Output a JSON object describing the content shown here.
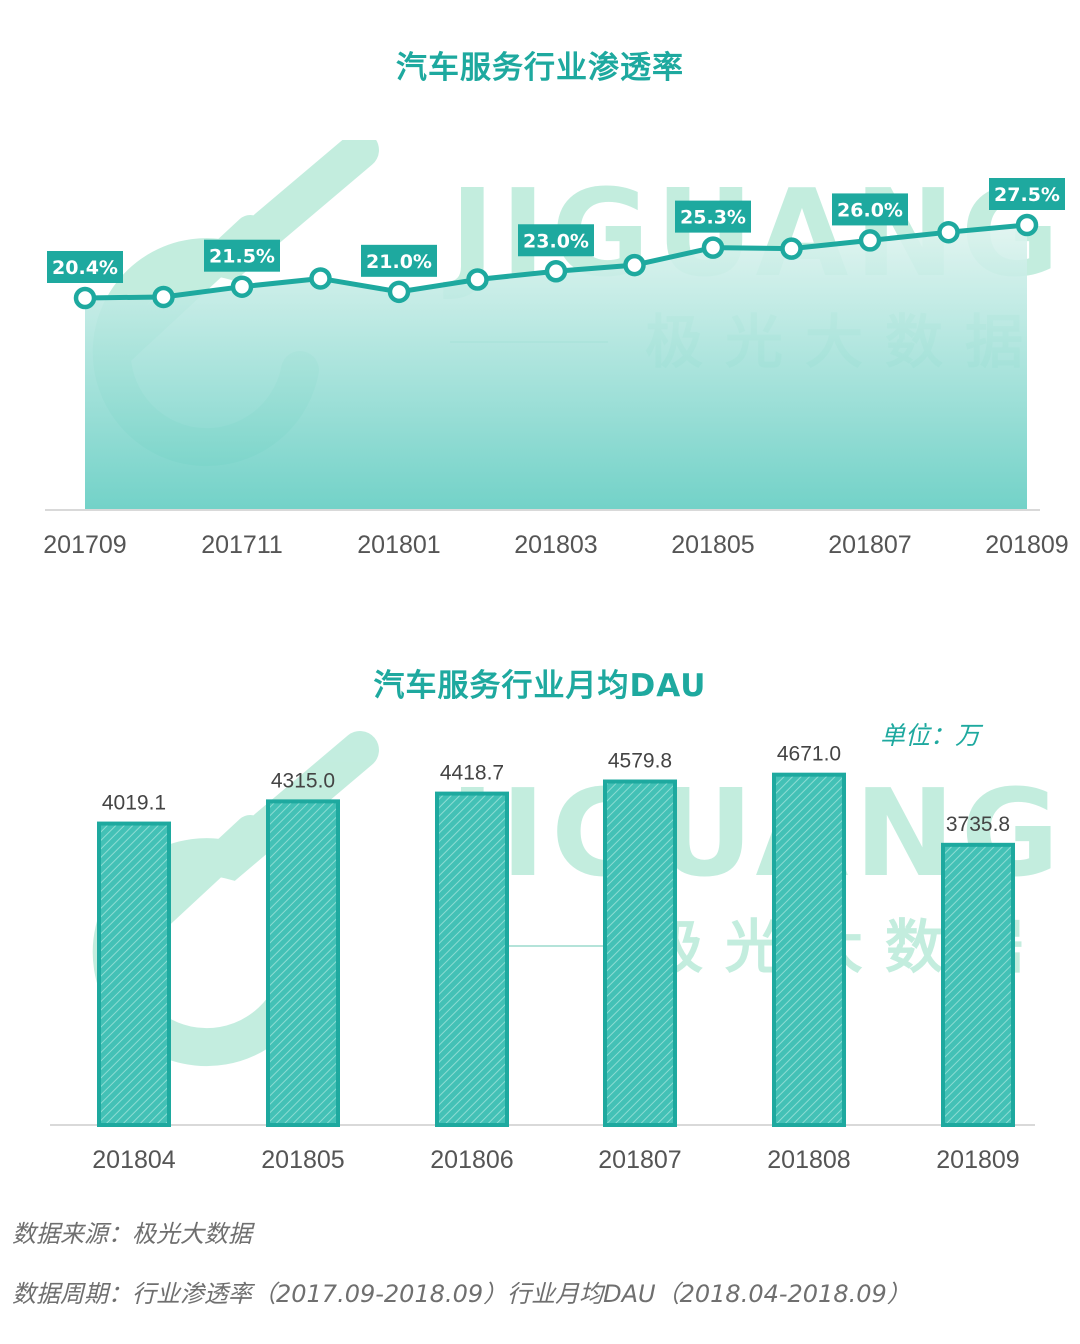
{
  "watermark": {
    "brand": "JIGUANG",
    "cn": "极光大数据"
  },
  "chart_data": [
    {
      "type": "area",
      "title": "汽车服务行业渗透率",
      "x": [
        "201709",
        "201710",
        "201711",
        "201712",
        "201801",
        "201802",
        "201803",
        "201804",
        "201805",
        "201806",
        "201807",
        "201808",
        "201809"
      ],
      "x_tick_labels": [
        "201709",
        "201711",
        "201801",
        "201803",
        "201805",
        "201807",
        "201809"
      ],
      "values": [
        20.4,
        20.5,
        21.5,
        22.3,
        21.0,
        22.2,
        23.0,
        23.6,
        25.3,
        25.2,
        26.0,
        26.8,
        27.5
      ],
      "data_labels": [
        {
          "x": "201709",
          "text": "20.4%"
        },
        {
          "x": "201711",
          "text": "21.5%"
        },
        {
          "x": "201801",
          "text": "21.0%"
        },
        {
          "x": "201803",
          "text": "23.0%"
        },
        {
          "x": "201805",
          "text": "25.3%"
        },
        {
          "x": "201807",
          "text": "26.0%"
        },
        {
          "x": "201809",
          "text": "27.5%"
        }
      ],
      "ylim": [
        0,
        30
      ],
      "grid": false,
      "colors": {
        "line": "#1ea99f",
        "label_bg": "#1ea99f",
        "fill_top": "#dff4ef",
        "fill_bottom": "#63cdc2"
      }
    },
    {
      "type": "bar",
      "title": "汽车服务行业月均DAU",
      "unit_label": "单位：万",
      "categories": [
        "201804",
        "201805",
        "201806",
        "201807",
        "201808",
        "201809"
      ],
      "values": [
        4019.1,
        4315.0,
        4418.7,
        4579.8,
        4671.0,
        3735.8
      ],
      "value_labels": [
        "4019.1",
        "4315.0",
        "4418.7",
        "4579.8",
        "4671.0",
        "3735.8"
      ],
      "ylim": [
        0,
        5400
      ],
      "grid": false,
      "colors": {
        "bar": "#43c1b6",
        "stroke": "#1ea99f",
        "hatch": "#8ddcd3"
      }
    }
  ],
  "footnotes": {
    "source": "数据来源：极光大数据",
    "period": "数据周期：行业渗透率（2017.09-2018.09）行业月均DAU（2018.04-2018.09）"
  }
}
